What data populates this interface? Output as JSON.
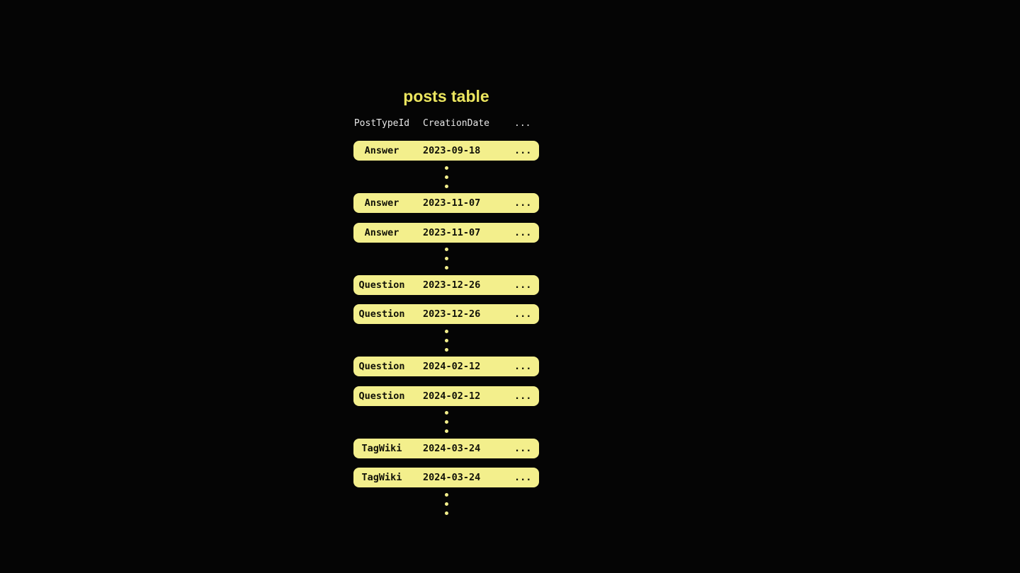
{
  "theme": {
    "background": "#050505",
    "title_color": "#ece65f",
    "header_color": "#e7e7e7",
    "row_fill": "#f3ef8c",
    "row_text": "#111108",
    "dot_color": "#f3ef8c"
  },
  "table": {
    "title": "posts table",
    "header": {
      "post_type_label": "PostTypeId",
      "creation_date_label": "CreationDate",
      "more_label": "..."
    },
    "rows": [
      {
        "post_type": "Answer",
        "creation_date": "2023-09-18",
        "more": "..."
      },
      {
        "post_type": "Answer",
        "creation_date": "2023-11-07",
        "more": "..."
      },
      {
        "post_type": "Answer",
        "creation_date": "2023-11-07",
        "more": "..."
      },
      {
        "post_type": "Question",
        "creation_date": "2023-12-26",
        "more": "..."
      },
      {
        "post_type": "Question",
        "creation_date": "2023-12-26",
        "more": "..."
      },
      {
        "post_type": "Question",
        "creation_date": "2024-02-12",
        "more": "..."
      },
      {
        "post_type": "Question",
        "creation_date": "2024-02-12",
        "more": "..."
      },
      {
        "post_type": "TagWiki",
        "creation_date": "2024-03-24",
        "more": "..."
      },
      {
        "post_type": "TagWiki",
        "creation_date": "2024-03-24",
        "more": "..."
      }
    ]
  }
}
